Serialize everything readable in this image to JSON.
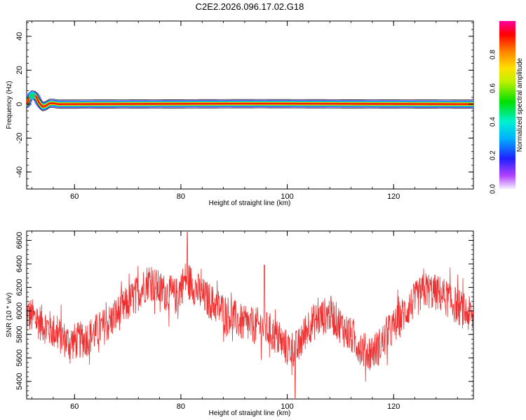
{
  "title": "C2E2.2026.096.17.02.G18",
  "chart_data": [
    {
      "type": "heatmap",
      "xlabel": "Height of straight line (km)",
      "ylabel": "Frequency (Hz)",
      "xlim": [
        51,
        135
      ],
      "ylim": [
        -50,
        49
      ],
      "xticks": [
        60,
        80,
        100,
        120
      ],
      "yticks": [
        -40,
        -20,
        0,
        20,
        40
      ],
      "colorbar": {
        "label": "Normalized spectral amplitude",
        "range": [
          0.0,
          1.0
        ],
        "ticks": [
          0.0,
          0.2,
          0.4,
          0.6,
          0.8
        ],
        "colormap": "rainbow (violet-blue-cyan-green-yellow-orange-red-magenta)"
      },
      "ridge": {
        "description": "Narrow-band signal centred near 0 Hz across full height range; oscillating near 51-57 km",
        "points": [
          {
            "x": 51.0,
            "y": 0.0
          },
          {
            "x": 51.5,
            "y": 4.0
          },
          {
            "x": 52.0,
            "y": 5.5
          },
          {
            "x": 52.7,
            "y": 5.0
          },
          {
            "x": 53.3,
            "y": 1.0
          },
          {
            "x": 54.0,
            "y": -1.5
          },
          {
            "x": 54.6,
            "y": -1.0
          },
          {
            "x": 55.3,
            "y": 0.5
          },
          {
            "x": 56.0,
            "y": 0.5
          },
          {
            "x": 57.0,
            "y": 0.0
          },
          {
            "x": 95.0,
            "y": 0.3
          },
          {
            "x": 135.0,
            "y": 0.0
          }
        ]
      }
    },
    {
      "type": "line",
      "xlabel": "Height of straight line (km)",
      "ylabel": "SNR (10 * v/v)",
      "xlim": [
        51,
        135
      ],
      "ylim": [
        5250,
        6680
      ],
      "xticks": [
        60,
        80,
        100,
        120
      ],
      "yticks": [
        5400,
        5600,
        5800,
        6000,
        6200,
        6400,
        6600
      ],
      "color": "#f03030",
      "trend": {
        "description": "Noisy SNR trace; mean values along height",
        "points": [
          {
            "x": 51,
            "y": 5980
          },
          {
            "x": 55,
            "y": 5860
          },
          {
            "x": 59,
            "y": 5730
          },
          {
            "x": 62,
            "y": 5760
          },
          {
            "x": 66,
            "y": 5880
          },
          {
            "x": 70,
            "y": 6060
          },
          {
            "x": 74,
            "y": 6260
          },
          {
            "x": 76,
            "y": 6180
          },
          {
            "x": 79,
            "y": 6120
          },
          {
            "x": 81,
            "y": 6280
          },
          {
            "x": 84,
            "y": 6130
          },
          {
            "x": 88,
            "y": 6000
          },
          {
            "x": 92,
            "y": 5880
          },
          {
            "x": 95,
            "y": 5870
          },
          {
            "x": 97,
            "y": 5820
          },
          {
            "x": 100,
            "y": 5680
          },
          {
            "x": 102,
            "y": 5680
          },
          {
            "x": 104,
            "y": 5880
          },
          {
            "x": 108,
            "y": 5980
          },
          {
            "x": 111,
            "y": 5830
          },
          {
            "x": 115,
            "y": 5640
          },
          {
            "x": 117,
            "y": 5680
          },
          {
            "x": 120,
            "y": 5860
          },
          {
            "x": 123,
            "y": 6040
          },
          {
            "x": 126,
            "y": 6180
          },
          {
            "x": 129,
            "y": 6140
          },
          {
            "x": 132,
            "y": 6040
          },
          {
            "x": 135,
            "y": 5940
          }
        ],
        "noise_amplitude": 160,
        "spikes": [
          {
            "x": 81.2,
            "y": 6670
          },
          {
            "x": 95.7,
            "y": 6390
          },
          {
            "x": 101.5,
            "y": 5260
          }
        ]
      }
    }
  ]
}
